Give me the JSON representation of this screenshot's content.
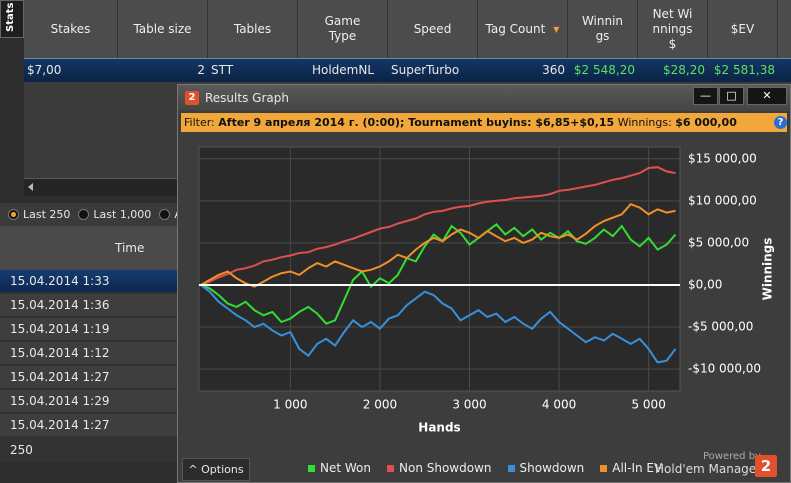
{
  "sidebar_tab": "Stats",
  "stats_table": {
    "columns": [
      "Stakes",
      "Table size",
      "Tables",
      "Game Type",
      "Speed",
      "Tag Count",
      "Winnings",
      "Net Winnings $",
      "$EV"
    ],
    "rows": [
      [
        "$7,00",
        "2",
        "STT",
        "HoldemNL",
        "SuperTurbo",
        "360",
        "$2 548,20",
        "$28,20",
        "$2 581,38"
      ]
    ]
  },
  "range_options": [
    "Last 250",
    "Last 1,000",
    "All"
  ],
  "sessions": {
    "header": "Time",
    "rows": [
      "15.04.2014 1:33",
      "15.04.2014 1:36",
      "15.04.2014 1:19",
      "15.04.2014 1:12",
      "15.04.2014 1:27",
      "15.04.2014 1:29",
      "15.04.2014 1:27"
    ],
    "footer": "250"
  },
  "window": {
    "icon": "2",
    "title": "Results Graph",
    "filter": {
      "label": "Filter:",
      "conditions": "After 9 апреля 2014 г. (0:00); Tournament buyins: $6,85+$0,15",
      "winnings_label": "Winnings:",
      "winnings": "$6 000,00"
    },
    "options": "Options",
    "powered_by": "Powered by",
    "brand": "Hold'em Manager",
    "brand_logo": "2"
  },
  "chart_data": {
    "type": "line",
    "x_label": "Hands",
    "y_label": "Winnings",
    "x": [
      0,
      100,
      200,
      300,
      400,
      500,
      600,
      700,
      800,
      900,
      1000,
      1100,
      1200,
      1300,
      1400,
      1500,
      1600,
      1700,
      1800,
      1900,
      2000,
      2100,
      2200,
      2300,
      2400,
      2500,
      2600,
      2700,
      2800,
      2900,
      3000,
      3100,
      3200,
      3300,
      3400,
      3500,
      3600,
      3700,
      3800,
      3900,
      4000,
      4100,
      4200,
      4300,
      4400,
      4500,
      4600,
      4700,
      4800,
      4900,
      5000,
      5100,
      5200,
      5300
    ],
    "series": [
      {
        "name": "Net Won",
        "color": "#33dd33",
        "values": [
          0,
          -400,
          -1200,
          -2200,
          -2600,
          -2000,
          -3000,
          -3600,
          -3200,
          -4400,
          -4000,
          -3200,
          -2600,
          -3400,
          -4600,
          -4200,
          -1800,
          600,
          1600,
          -200,
          800,
          200,
          1200,
          3200,
          2800,
          4600,
          6000,
          5200,
          7000,
          6200,
          4800,
          5600,
          6400,
          7200,
          6000,
          6800,
          5800,
          6600,
          5400,
          6200,
          5600,
          6400,
          5200,
          4900,
          5600,
          6600,
          5800,
          7000,
          5400,
          4600,
          5600,
          4200,
          4800,
          6000
        ]
      },
      {
        "name": "Non Showdown",
        "color": "#e05050",
        "values": [
          0,
          400,
          900,
          1300,
          1800,
          2000,
          2300,
          2800,
          3000,
          3300,
          3500,
          3800,
          3900,
          4300,
          4500,
          4800,
          5200,
          5500,
          5900,
          6300,
          6700,
          6900,
          7300,
          7600,
          7900,
          8400,
          8700,
          8800,
          9100,
          9300,
          9400,
          9700,
          9900,
          10000,
          10100,
          10300,
          10400,
          10500,
          10600,
          10800,
          11200,
          11300,
          11500,
          11700,
          11900,
          12200,
          12500,
          12700,
          13000,
          13300,
          13900,
          14000,
          13500,
          13300
        ]
      },
      {
        "name": "Showdown",
        "color": "#3a90d8",
        "values": [
          0,
          -800,
          -2000,
          -2800,
          -3600,
          -4200,
          -5000,
          -4600,
          -5400,
          -6000,
          -5600,
          -7600,
          -8400,
          -7000,
          -6400,
          -7200,
          -5600,
          -4200,
          -5000,
          -4400,
          -5200,
          -4000,
          -3600,
          -2400,
          -1600,
          -800,
          -1200,
          -2200,
          -2800,
          -4200,
          -3600,
          -3000,
          -3800,
          -3400,
          -4400,
          -3800,
          -4600,
          -5200,
          -4000,
          -3200,
          -4400,
          -5200,
          -6000,
          -6800,
          -6200,
          -6600,
          -5800,
          -6400,
          -7000,
          -6400,
          -7600,
          -9200,
          -9000,
          -7600
        ]
      },
      {
        "name": "All-In EV",
        "color": "#f0902a",
        "values": [
          0,
          600,
          1200,
          1600,
          800,
          200,
          -200,
          400,
          1000,
          1400,
          1600,
          1200,
          2000,
          2600,
          2200,
          2800,
          2400,
          2000,
          1600,
          1800,
          2200,
          2800,
          3600,
          3200,
          4200,
          5000,
          5600,
          5200,
          6000,
          6600,
          6200,
          5600,
          6400,
          5800,
          5200,
          5600,
          5000,
          5400,
          6200,
          5800,
          5600,
          6000,
          5400,
          6100,
          7000,
          7600,
          8000,
          8400,
          9600,
          9200,
          8400,
          9000,
          8600,
          8800
        ]
      }
    ],
    "xlim": [
      -20,
      5350
    ],
    "xticks": [
      {
        "value": 1000,
        "label": "1 000"
      },
      {
        "value": 2000,
        "label": "2 000"
      },
      {
        "value": 3000,
        "label": "3 000"
      },
      {
        "value": 4000,
        "label": "4 000"
      },
      {
        "value": 5000,
        "label": "5 000"
      }
    ],
    "ylim": [
      -12600,
      16400
    ],
    "yticks": [
      {
        "value": 15000,
        "label": "$15 000,00"
      },
      {
        "value": 10000,
        "label": "$10 000,00"
      },
      {
        "value": 5000,
        "label": "$5 000,00"
      },
      {
        "value": 0,
        "label": "$0,00"
      },
      {
        "value": -5000,
        "label": "-$5 000,00"
      },
      {
        "value": -10000,
        "label": "-$10 000,00"
      }
    ],
    "grid": true,
    "zero_line_color": "#ffffff",
    "legend": "bottom"
  }
}
